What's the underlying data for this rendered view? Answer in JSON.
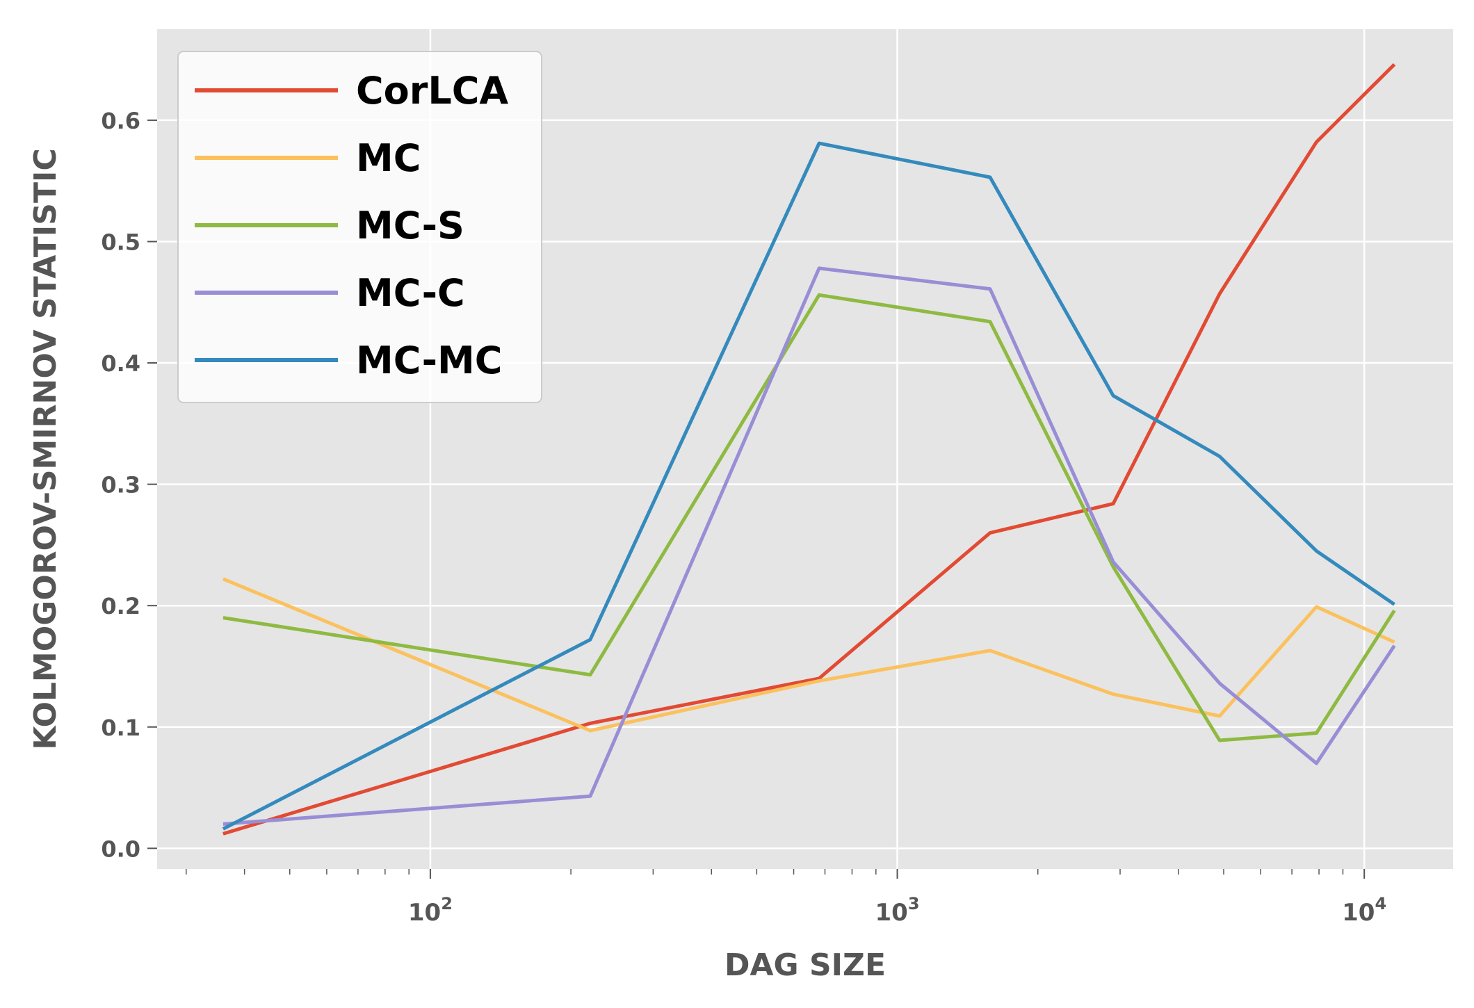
{
  "chart_data": {
    "type": "line",
    "title": "",
    "xlabel": "DAG SIZE",
    "ylabel": "KOLMOGOROV-SMIRNOV STATISTIC",
    "xscale": "log",
    "xlim": [
      26,
      15500
    ],
    "ylim": [
      -0.017,
      0.675
    ],
    "yticks": [
      0.0,
      0.1,
      0.2,
      0.3,
      0.4,
      0.5,
      0.6
    ],
    "ytick_labels": [
      "0.0",
      "0.1",
      "0.2",
      "0.3",
      "0.4",
      "0.5",
      "0.6"
    ],
    "xticks": [
      100,
      1000,
      10000
    ],
    "xtick_bases": [
      "10",
      "10",
      "10"
    ],
    "xtick_exponents": [
      "2",
      "3",
      "4"
    ],
    "grid": true,
    "legend_position": "top-left",
    "x": [
      36,
      220,
      680,
      1580,
      2900,
      4900,
      7900,
      11600
    ],
    "series": [
      {
        "name": "CorLCA",
        "color": "#E24A33",
        "values": [
          0.012,
          0.103,
          0.14,
          0.26,
          0.284,
          0.457,
          0.582,
          0.646
        ]
      },
      {
        "name": "MC",
        "color": "#FBC15E",
        "values": [
          0.222,
          0.097,
          0.138,
          0.163,
          0.127,
          0.109,
          0.199,
          0.17
        ]
      },
      {
        "name": "MC-S",
        "color": "#8EBA42",
        "values": [
          0.19,
          0.143,
          0.456,
          0.434,
          0.232,
          0.089,
          0.095,
          0.196
        ]
      },
      {
        "name": "MC-C",
        "color": "#988ED5",
        "values": [
          0.02,
          0.043,
          0.478,
          0.461,
          0.236,
          0.136,
          0.07,
          0.167
        ]
      },
      {
        "name": "MC-MC",
        "color": "#348ABD",
        "values": [
          0.016,
          0.172,
          0.581,
          0.553,
          0.373,
          0.323,
          0.245,
          0.201
        ]
      }
    ]
  }
}
